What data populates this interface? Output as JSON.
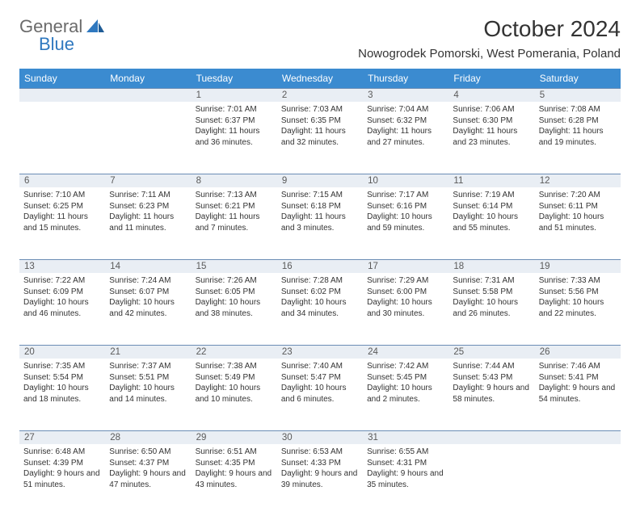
{
  "brand": {
    "line1": "General",
    "line2": "Blue",
    "logo_color": "#2f78bf",
    "text_color": "#6b6b6b"
  },
  "header": {
    "title": "October 2024",
    "location": "Nowogrodek Pomorski, West Pomerania, Poland",
    "title_fontsize": 28,
    "location_fontsize": 15
  },
  "colors": {
    "header_bg": "#3b8bd0",
    "header_text": "#ffffff",
    "daynum_bg": "#e9eef4",
    "border": "#6b8db5",
    "text": "#333333",
    "background": "#ffffff"
  },
  "daysOfWeek": [
    "Sunday",
    "Monday",
    "Tuesday",
    "Wednesday",
    "Thursday",
    "Friday",
    "Saturday"
  ],
  "weeks": [
    {
      "nums": [
        "",
        "",
        "1",
        "2",
        "3",
        "4",
        "5"
      ],
      "cells": [
        {
          "sunrise": "",
          "sunset": "",
          "daylight": ""
        },
        {
          "sunrise": "",
          "sunset": "",
          "daylight": ""
        },
        {
          "sunrise": "Sunrise: 7:01 AM",
          "sunset": "Sunset: 6:37 PM",
          "daylight": "Daylight: 11 hours and 36 minutes."
        },
        {
          "sunrise": "Sunrise: 7:03 AM",
          "sunset": "Sunset: 6:35 PM",
          "daylight": "Daylight: 11 hours and 32 minutes."
        },
        {
          "sunrise": "Sunrise: 7:04 AM",
          "sunset": "Sunset: 6:32 PM",
          "daylight": "Daylight: 11 hours and 27 minutes."
        },
        {
          "sunrise": "Sunrise: 7:06 AM",
          "sunset": "Sunset: 6:30 PM",
          "daylight": "Daylight: 11 hours and 23 minutes."
        },
        {
          "sunrise": "Sunrise: 7:08 AM",
          "sunset": "Sunset: 6:28 PM",
          "daylight": "Daylight: 11 hours and 19 minutes."
        }
      ]
    },
    {
      "nums": [
        "6",
        "7",
        "8",
        "9",
        "10",
        "11",
        "12"
      ],
      "cells": [
        {
          "sunrise": "Sunrise: 7:10 AM",
          "sunset": "Sunset: 6:25 PM",
          "daylight": "Daylight: 11 hours and 15 minutes."
        },
        {
          "sunrise": "Sunrise: 7:11 AM",
          "sunset": "Sunset: 6:23 PM",
          "daylight": "Daylight: 11 hours and 11 minutes."
        },
        {
          "sunrise": "Sunrise: 7:13 AM",
          "sunset": "Sunset: 6:21 PM",
          "daylight": "Daylight: 11 hours and 7 minutes."
        },
        {
          "sunrise": "Sunrise: 7:15 AM",
          "sunset": "Sunset: 6:18 PM",
          "daylight": "Daylight: 11 hours and 3 minutes."
        },
        {
          "sunrise": "Sunrise: 7:17 AM",
          "sunset": "Sunset: 6:16 PM",
          "daylight": "Daylight: 10 hours and 59 minutes."
        },
        {
          "sunrise": "Sunrise: 7:19 AM",
          "sunset": "Sunset: 6:14 PM",
          "daylight": "Daylight: 10 hours and 55 minutes."
        },
        {
          "sunrise": "Sunrise: 7:20 AM",
          "sunset": "Sunset: 6:11 PM",
          "daylight": "Daylight: 10 hours and 51 minutes."
        }
      ]
    },
    {
      "nums": [
        "13",
        "14",
        "15",
        "16",
        "17",
        "18",
        "19"
      ],
      "cells": [
        {
          "sunrise": "Sunrise: 7:22 AM",
          "sunset": "Sunset: 6:09 PM",
          "daylight": "Daylight: 10 hours and 46 minutes."
        },
        {
          "sunrise": "Sunrise: 7:24 AM",
          "sunset": "Sunset: 6:07 PM",
          "daylight": "Daylight: 10 hours and 42 minutes."
        },
        {
          "sunrise": "Sunrise: 7:26 AM",
          "sunset": "Sunset: 6:05 PM",
          "daylight": "Daylight: 10 hours and 38 minutes."
        },
        {
          "sunrise": "Sunrise: 7:28 AM",
          "sunset": "Sunset: 6:02 PM",
          "daylight": "Daylight: 10 hours and 34 minutes."
        },
        {
          "sunrise": "Sunrise: 7:29 AM",
          "sunset": "Sunset: 6:00 PM",
          "daylight": "Daylight: 10 hours and 30 minutes."
        },
        {
          "sunrise": "Sunrise: 7:31 AM",
          "sunset": "Sunset: 5:58 PM",
          "daylight": "Daylight: 10 hours and 26 minutes."
        },
        {
          "sunrise": "Sunrise: 7:33 AM",
          "sunset": "Sunset: 5:56 PM",
          "daylight": "Daylight: 10 hours and 22 minutes."
        }
      ]
    },
    {
      "nums": [
        "20",
        "21",
        "22",
        "23",
        "24",
        "25",
        "26"
      ],
      "cells": [
        {
          "sunrise": "Sunrise: 7:35 AM",
          "sunset": "Sunset: 5:54 PM",
          "daylight": "Daylight: 10 hours and 18 minutes."
        },
        {
          "sunrise": "Sunrise: 7:37 AM",
          "sunset": "Sunset: 5:51 PM",
          "daylight": "Daylight: 10 hours and 14 minutes."
        },
        {
          "sunrise": "Sunrise: 7:38 AM",
          "sunset": "Sunset: 5:49 PM",
          "daylight": "Daylight: 10 hours and 10 minutes."
        },
        {
          "sunrise": "Sunrise: 7:40 AM",
          "sunset": "Sunset: 5:47 PM",
          "daylight": "Daylight: 10 hours and 6 minutes."
        },
        {
          "sunrise": "Sunrise: 7:42 AM",
          "sunset": "Sunset: 5:45 PM",
          "daylight": "Daylight: 10 hours and 2 minutes."
        },
        {
          "sunrise": "Sunrise: 7:44 AM",
          "sunset": "Sunset: 5:43 PM",
          "daylight": "Daylight: 9 hours and 58 minutes."
        },
        {
          "sunrise": "Sunrise: 7:46 AM",
          "sunset": "Sunset: 5:41 PM",
          "daylight": "Daylight: 9 hours and 54 minutes."
        }
      ]
    },
    {
      "nums": [
        "27",
        "28",
        "29",
        "30",
        "31",
        "",
        ""
      ],
      "cells": [
        {
          "sunrise": "Sunrise: 6:48 AM",
          "sunset": "Sunset: 4:39 PM",
          "daylight": "Daylight: 9 hours and 51 minutes."
        },
        {
          "sunrise": "Sunrise: 6:50 AM",
          "sunset": "Sunset: 4:37 PM",
          "daylight": "Daylight: 9 hours and 47 minutes."
        },
        {
          "sunrise": "Sunrise: 6:51 AM",
          "sunset": "Sunset: 4:35 PM",
          "daylight": "Daylight: 9 hours and 43 minutes."
        },
        {
          "sunrise": "Sunrise: 6:53 AM",
          "sunset": "Sunset: 4:33 PM",
          "daylight": "Daylight: 9 hours and 39 minutes."
        },
        {
          "sunrise": "Sunrise: 6:55 AM",
          "sunset": "Sunset: 4:31 PM",
          "daylight": "Daylight: 9 hours and 35 minutes."
        },
        {
          "sunrise": "",
          "sunset": "",
          "daylight": ""
        },
        {
          "sunrise": "",
          "sunset": "",
          "daylight": ""
        }
      ]
    }
  ]
}
